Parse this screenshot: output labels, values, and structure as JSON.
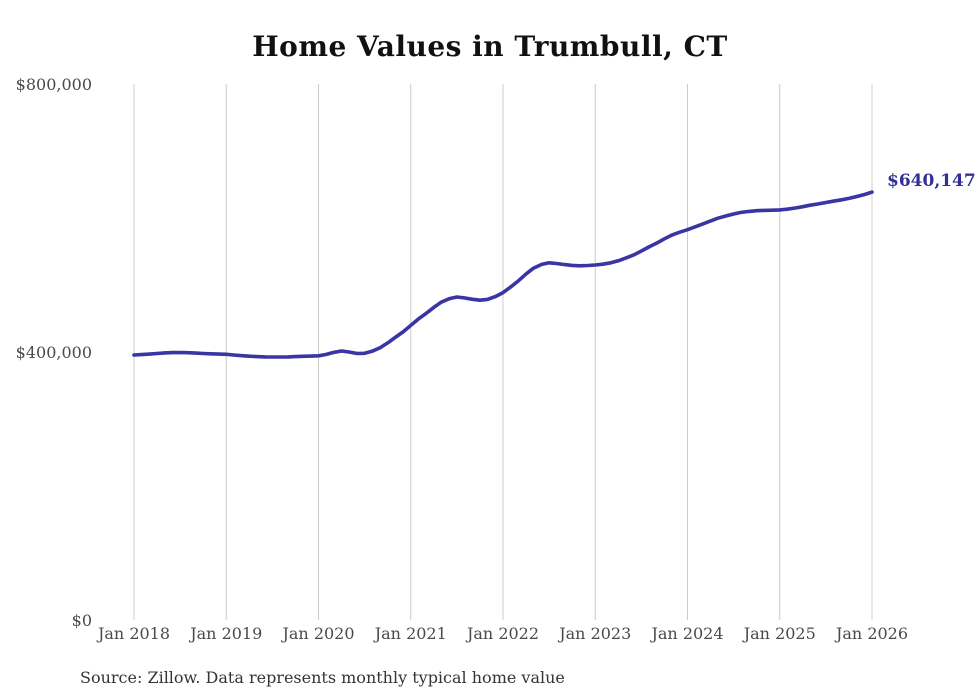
{
  "chart_data": {
    "type": "line",
    "title": "Home Values in Trumbull, CT",
    "source_note": "Source: Zillow. Data represents monthly typical home value",
    "end_label": "$640,147",
    "end_value": 640147,
    "line_color": "#3b35a3",
    "end_label_color": "#332f94",
    "grid_color": "#cccccc",
    "grid": "vertical-only",
    "legend": "none",
    "ylim": [
      0,
      800000
    ],
    "x_range_years": [
      2018,
      2026
    ],
    "y_ticks": [
      {
        "value": 800000,
        "label": "$800,000"
      },
      {
        "value": 400000,
        "label": "$400,000"
      },
      {
        "value": 0,
        "label": "$0"
      }
    ],
    "x_ticks": [
      {
        "year": 2018,
        "label": "Jan 2018"
      },
      {
        "year": 2019,
        "label": "Jan 2019"
      },
      {
        "year": 2020,
        "label": "Jan 2020"
      },
      {
        "year": 2021,
        "label": "Jan 2021"
      },
      {
        "year": 2022,
        "label": "Jan 2022"
      },
      {
        "year": 2023,
        "label": "Jan 2023"
      },
      {
        "year": 2024,
        "label": "Jan 2024"
      },
      {
        "year": 2025,
        "label": "Jan 2025"
      },
      {
        "year": 2026,
        "label": "Jan 2026"
      }
    ],
    "series": [
      {
        "name": "Monthly typical home value",
        "points": [
          [
            2018.0,
            397000
          ],
          [
            2018.08,
            397600
          ],
          [
            2018.17,
            398400
          ],
          [
            2018.25,
            399300
          ],
          [
            2018.33,
            400100
          ],
          [
            2018.42,
            400600
          ],
          [
            2018.5,
            400800
          ],
          [
            2018.58,
            400500
          ],
          [
            2018.67,
            399900
          ],
          [
            2018.75,
            399300
          ],
          [
            2018.83,
            398800
          ],
          [
            2018.92,
            398400
          ],
          [
            2019.0,
            398000
          ],
          [
            2019.08,
            397000
          ],
          [
            2019.17,
            396000
          ],
          [
            2019.25,
            395200
          ],
          [
            2019.33,
            394600
          ],
          [
            2019.42,
            394200
          ],
          [
            2019.5,
            394000
          ],
          [
            2019.58,
            394000
          ],
          [
            2019.67,
            394200
          ],
          [
            2019.75,
            394600
          ],
          [
            2019.83,
            395000
          ],
          [
            2019.92,
            395400
          ],
          [
            2020.0,
            395800
          ],
          [
            2020.08,
            397800
          ],
          [
            2020.17,
            401000
          ],
          [
            2020.25,
            403000
          ],
          [
            2020.33,
            401500
          ],
          [
            2020.42,
            399200
          ],
          [
            2020.5,
            399600
          ],
          [
            2020.58,
            402600
          ],
          [
            2020.67,
            408000
          ],
          [
            2020.75,
            415000
          ],
          [
            2020.83,
            423200
          ],
          [
            2020.92,
            432000
          ],
          [
            2021.0,
            441200
          ],
          [
            2021.08,
            450400
          ],
          [
            2021.17,
            459400
          ],
          [
            2021.25,
            468000
          ],
          [
            2021.33,
            475800
          ],
          [
            2021.42,
            481200
          ],
          [
            2021.5,
            483600
          ],
          [
            2021.58,
            482200
          ],
          [
            2021.67,
            480200
          ],
          [
            2021.75,
            478800
          ],
          [
            2021.83,
            480000
          ],
          [
            2021.92,
            484400
          ],
          [
            2022.0,
            490200
          ],
          [
            2022.08,
            498200
          ],
          [
            2022.17,
            508000
          ],
          [
            2022.25,
            518000
          ],
          [
            2022.33,
            526600
          ],
          [
            2022.42,
            532200
          ],
          [
            2022.5,
            534600
          ],
          [
            2022.58,
            533600
          ],
          [
            2022.67,
            532000
          ],
          [
            2022.75,
            530800
          ],
          [
            2022.83,
            530200
          ],
          [
            2022.92,
            530600
          ],
          [
            2023.0,
            531300
          ],
          [
            2023.08,
            532600
          ],
          [
            2023.17,
            534600
          ],
          [
            2023.25,
            537600
          ],
          [
            2023.33,
            541600
          ],
          [
            2023.42,
            546600
          ],
          [
            2023.5,
            552200
          ],
          [
            2023.58,
            558200
          ],
          [
            2023.67,
            564400
          ],
          [
            2023.75,
            570400
          ],
          [
            2023.83,
            576000
          ],
          [
            2023.92,
            580400
          ],
          [
            2024.0,
            584000
          ],
          [
            2024.08,
            588200
          ],
          [
            2024.17,
            592800
          ],
          [
            2024.25,
            597200
          ],
          [
            2024.33,
            601200
          ],
          [
            2024.42,
            604600
          ],
          [
            2024.5,
            607400
          ],
          [
            2024.58,
            609800
          ],
          [
            2024.67,
            611400
          ],
          [
            2024.75,
            612400
          ],
          [
            2024.83,
            612900
          ],
          [
            2024.92,
            613100
          ],
          [
            2025.0,
            613600
          ],
          [
            2025.08,
            614600
          ],
          [
            2025.17,
            616400
          ],
          [
            2025.25,
            618400
          ],
          [
            2025.33,
            620600
          ],
          [
            2025.42,
            622600
          ],
          [
            2025.5,
            624600
          ],
          [
            2025.58,
            626600
          ],
          [
            2025.67,
            628600
          ],
          [
            2025.75,
            630800
          ],
          [
            2025.83,
            633400
          ],
          [
            2025.92,
            636600
          ],
          [
            2026.0,
            640147
          ]
        ]
      }
    ]
  }
}
